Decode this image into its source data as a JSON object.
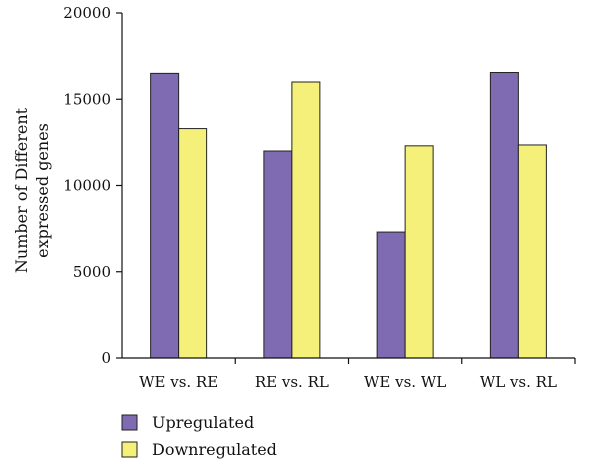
{
  "chart_data": {
    "type": "bar",
    "title": "",
    "xlabel": "",
    "ylabel_lines": [
      "Number of Different",
      "expressed genes"
    ],
    "categories": [
      "WE vs. RE",
      "RE vs. RL",
      "WE vs. WL",
      "WL vs. RL"
    ],
    "series": [
      {
        "name": "Upregulated",
        "color": "#7e6bb2",
        "values": [
          16500,
          12000,
          7300,
          16550
        ]
      },
      {
        "name": "Downregulated",
        "color": "#f5f07a",
        "values": [
          13300,
          16000,
          12300,
          12350
        ]
      }
    ],
    "ylim": [
      0,
      20000
    ],
    "yticks": [
      0,
      5000,
      10000,
      15000,
      20000
    ],
    "grid": false,
    "legend_position": "bottom-left"
  }
}
